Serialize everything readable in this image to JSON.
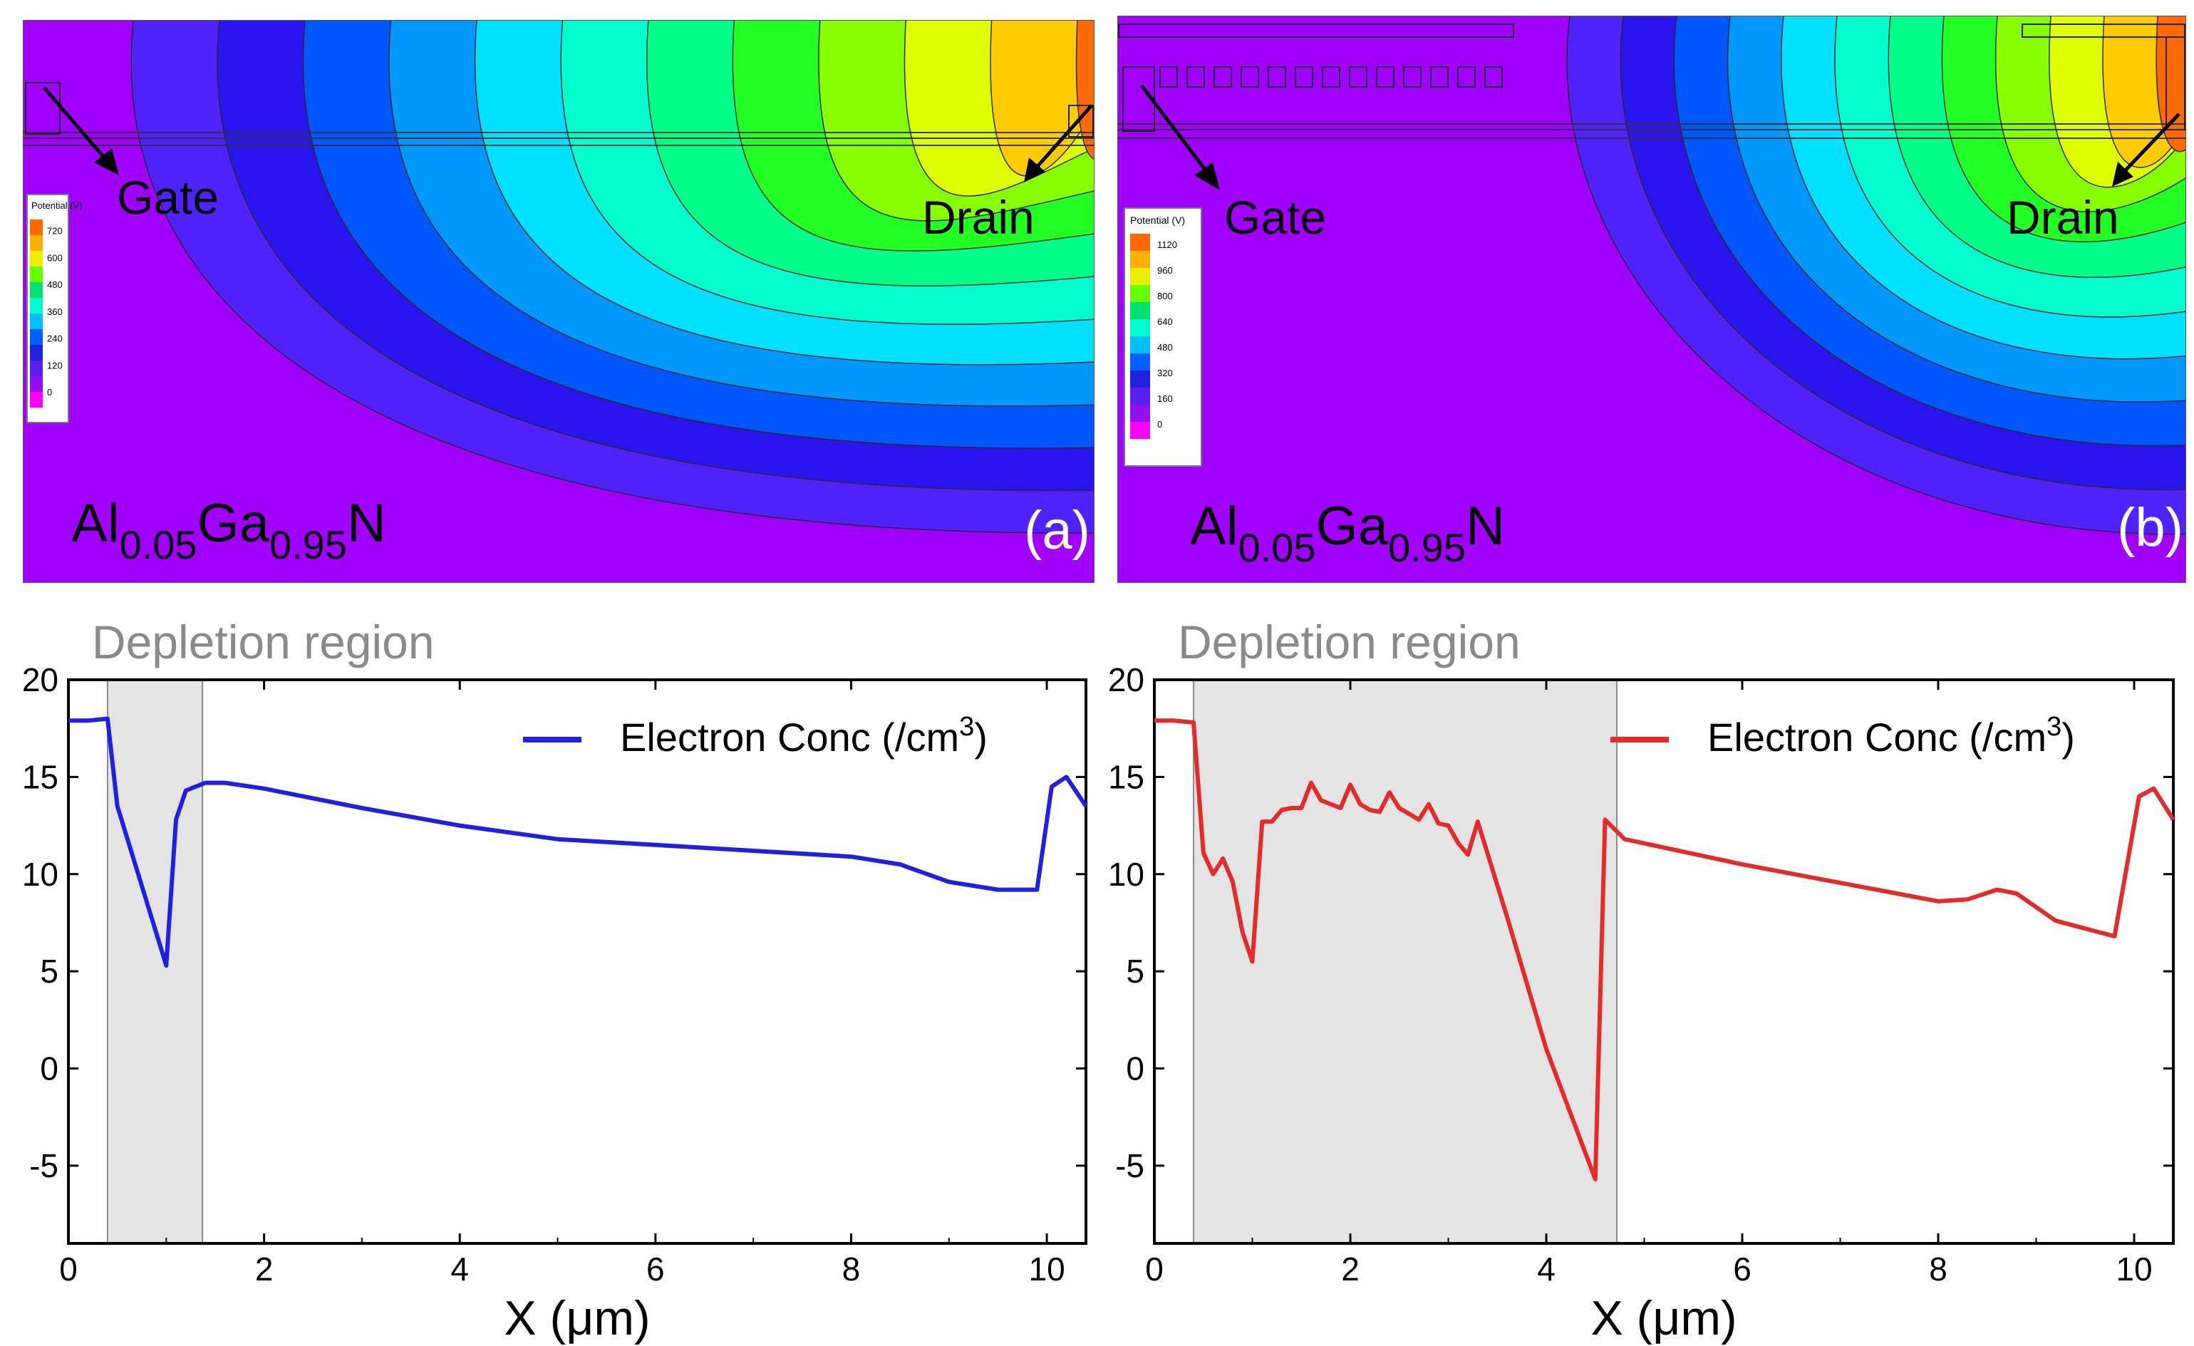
{
  "panels": [
    {
      "id": "a",
      "panel_label": "(a)",
      "gate_label": "Gate",
      "drain_label": "Drain",
      "material": {
        "base1": "Al",
        "sub1": "0.05",
        "base2": "Ga",
        "sub2": "0.95",
        "base3": "N"
      },
      "legend": {
        "title": "Potential (V)",
        "entries": [
          "720",
          "600",
          "480",
          "360",
          "240",
          "120",
          "0"
        ],
        "colors": [
          "#ff6a00",
          "#ffb000",
          "#e8f000",
          "#66ff00",
          "#00e070",
          "#00ffcc",
          "#00c0ff",
          "#0060ff",
          "#2020e0",
          "#5a1ef0",
          "#9010f0",
          "#ff00ff"
        ]
      },
      "bands": [
        "#9f00ff",
        "#5022ff",
        "#2a14ee",
        "#0056ff",
        "#0098ff",
        "#00e0ff",
        "#00ffcc",
        "#00ff88",
        "#22ff22",
        "#88ff00",
        "#ddff00",
        "#ffcc00",
        "#ff6a00"
      ]
    },
    {
      "id": "b",
      "panel_label": "(b)",
      "gate_label": "Gate",
      "drain_label": "Drain",
      "material": {
        "base1": "Al",
        "sub1": "0.05",
        "base2": "Ga",
        "sub2": "0.95",
        "base3": "N"
      },
      "legend": {
        "title": "Potential (V)",
        "entries": [
          "1120",
          "960",
          "800",
          "640",
          "480",
          "320",
          "160",
          "0"
        ],
        "colors": [
          "#ff6a00",
          "#ffb000",
          "#e8f000",
          "#66ff00",
          "#00e070",
          "#00ffcc",
          "#00c0ff",
          "#0060ff",
          "#2020e0",
          "#5a1ef0",
          "#9010f0",
          "#ff00ff"
        ]
      },
      "bands": [
        "#9f00ff",
        "#5022ff",
        "#2a14ee",
        "#0056ff",
        "#0098ff",
        "#00e0ff",
        "#00ffcc",
        "#00ff88",
        "#22ff22",
        "#88ff00",
        "#ddff00",
        "#ffcc00",
        "#ff6a00"
      ]
    }
  ],
  "chart_data": [
    {
      "type": "line",
      "xlabel": "X (μm)",
      "ylabel": "",
      "xlim": [
        0,
        10.4
      ],
      "ylim": [
        -9,
        20
      ],
      "xticks": [
        0,
        2,
        4,
        6,
        8,
        10
      ],
      "yticks": [
        20,
        15,
        10,
        5,
        0,
        -5
      ],
      "shaded_region": {
        "label": "Depletion region",
        "x": [
          0.4,
          1.37
        ]
      },
      "legend_position": "top-right",
      "series": [
        {
          "name": "Electron Conc (/cm",
          "name_sup": "3",
          "name_suffix": ")",
          "color": "#1f1fe6",
          "x": [
            0,
            0.2,
            0.4,
            0.5,
            1.0,
            1.1,
            1.2,
            1.4,
            1.6,
            2.0,
            3.0,
            4.0,
            5.0,
            6.0,
            7.0,
            8.0,
            8.5,
            9.0,
            9.5,
            9.9,
            10.05,
            10.2,
            10.4
          ],
          "y": [
            17.9,
            17.9,
            18.0,
            13.5,
            5.3,
            12.8,
            14.3,
            14.7,
            14.7,
            14.4,
            13.4,
            12.5,
            11.8,
            11.5,
            11.2,
            10.9,
            10.5,
            9.6,
            9.2,
            9.2,
            14.5,
            15.0,
            13.5
          ]
        }
      ]
    },
    {
      "type": "line",
      "xlabel": "X (μm)",
      "ylabel": "",
      "xlim": [
        0,
        10.4
      ],
      "ylim": [
        -9,
        20
      ],
      "xticks": [
        0,
        2,
        4,
        6,
        8,
        10
      ],
      "yticks": [
        20,
        15,
        10,
        5,
        0,
        -5
      ],
      "shaded_region": {
        "label": "Depletion region",
        "x": [
          0.4,
          4.72
        ]
      },
      "legend_position": "top-right",
      "series": [
        {
          "name": "Electron Conc (/cm",
          "name_sup": "3",
          "name_suffix": ")",
          "color": "#e52a2a",
          "x": [
            0,
            0.2,
            0.4,
            0.5,
            0.6,
            0.7,
            0.8,
            0.9,
            1.0,
            1.1,
            1.2,
            1.3,
            1.4,
            1.5,
            1.6,
            1.7,
            1.8,
            1.9,
            2.0,
            2.1,
            2.2,
            2.3,
            2.4,
            2.5,
            2.6,
            2.7,
            2.8,
            2.9,
            3.0,
            3.1,
            3.2,
            3.3,
            3.6,
            4.0,
            4.5,
            4.6,
            4.8,
            6.0,
            8.0,
            8.3,
            8.6,
            8.8,
            9.2,
            9.8,
            10.05,
            10.2,
            10.4
          ],
          "y": [
            17.9,
            17.9,
            17.8,
            11.1,
            10.0,
            10.8,
            9.6,
            7.0,
            5.5,
            12.7,
            12.7,
            13.3,
            13.4,
            13.4,
            14.7,
            13.8,
            13.6,
            13.4,
            14.6,
            13.6,
            13.3,
            13.2,
            14.2,
            13.4,
            13.1,
            12.8,
            13.6,
            12.6,
            12.5,
            11.6,
            11.0,
            12.7,
            7.8,
            1.0,
            -5.7,
            12.8,
            11.8,
            10.5,
            8.6,
            8.7,
            9.2,
            9.0,
            7.6,
            6.8,
            14.0,
            14.4,
            12.8
          ]
        }
      ]
    }
  ]
}
